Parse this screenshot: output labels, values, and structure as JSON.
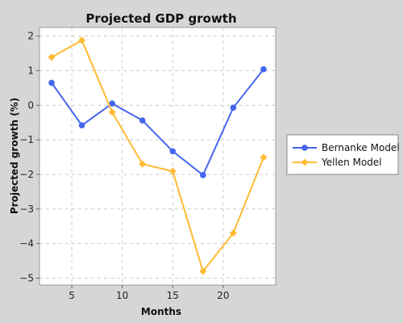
{
  "chart_data": {
    "type": "line",
    "title": "Projected GDP growth",
    "xlabel": "Months",
    "ylabel": "Projected growth (%)",
    "x": [
      3,
      6,
      9,
      12,
      15,
      18,
      21,
      24
    ],
    "xlim": [
      1.8,
      25.2
    ],
    "ylim": [
      -5.2,
      2.25
    ],
    "x_ticks": [
      5,
      10,
      15,
      20
    ],
    "y_ticks": [
      -5,
      -4,
      -3,
      -2,
      -1,
      0,
      1,
      2
    ],
    "x_tick_labels": [
      "5",
      "10",
      "15",
      "20"
    ],
    "y_tick_labels": [
      "−5",
      "−4",
      "−3",
      "−2",
      "−1",
      "0",
      "1",
      "2"
    ],
    "grid": true,
    "legend_position": "right",
    "series": [
      {
        "name": "Bernanke Model",
        "color": "#4466ee",
        "marker": "circle",
        "values": [
          0.65,
          -0.58,
          0.05,
          -0.44,
          -1.33,
          -2.02,
          -0.07,
          1.04
        ]
      },
      {
        "name": "Yellen Model",
        "color": "#ffbb33",
        "marker": "diamond",
        "values": [
          1.39,
          1.88,
          -0.2,
          -1.7,
          -1.91,
          -4.8,
          -3.7,
          -1.51
        ]
      }
    ]
  }
}
